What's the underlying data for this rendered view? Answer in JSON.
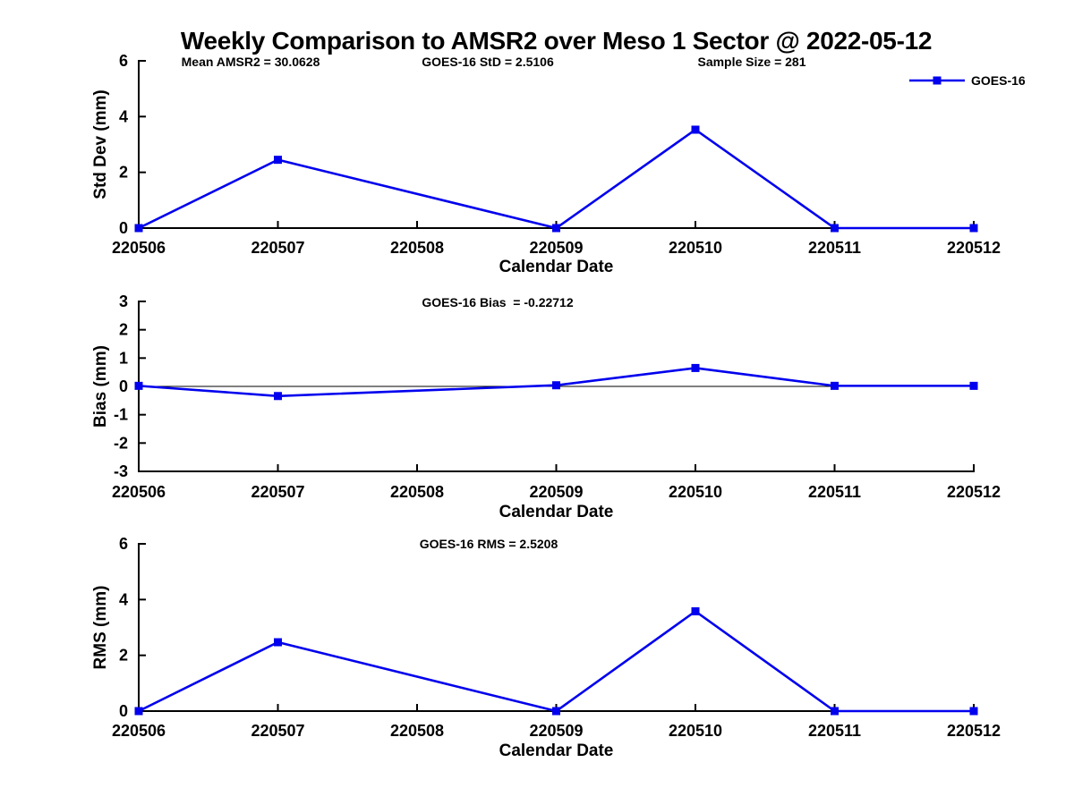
{
  "figure": {
    "title": "Weekly Comparison to AMSR2 over Meso 1 Sector @ 2022-05-12",
    "background_color": "#ffffff",
    "accent_color": "#0000ee",
    "axis_color": "#000000"
  },
  "chart_data": [
    {
      "type": "line",
      "ylabel": "Std Dev (mm)",
      "xlabel": "Calendar Date",
      "ylim": [
        0,
        6
      ],
      "yticks": [
        0,
        2,
        4,
        6
      ],
      "categories": [
        "220506",
        "220507",
        "220508",
        "220509",
        "220510",
        "220511",
        "220512"
      ],
      "annotations": [
        "Mean AMSR2 = 30.0628",
        "GOES-16 StD = 2.5106",
        "Sample Size = 281"
      ],
      "grid": false,
      "zero_line": false,
      "legend": {
        "entries": [
          "GOES-16"
        ],
        "position": "top-right"
      },
      "series": [
        {
          "name": "GOES-16",
          "color": "#0000ee",
          "marker": "square",
          "values": [
            0,
            2.45,
            null,
            0,
            3.53,
            0,
            0
          ]
        }
      ]
    },
    {
      "type": "line",
      "ylabel": "Bias (mm)",
      "xlabel": "Calendar Date",
      "ylim": [
        -3,
        3
      ],
      "yticks": [
        -3,
        -2,
        -1,
        0,
        1,
        2,
        3
      ],
      "categories": [
        "220506",
        "220507",
        "220508",
        "220509",
        "220510",
        "220511",
        "220512"
      ],
      "annotations": [
        "GOES-16 Bias  = -0.22712"
      ],
      "grid": false,
      "zero_line": true,
      "legend": null,
      "series": [
        {
          "name": "GOES-16",
          "color": "#0000ee",
          "marker": "square",
          "values": [
            0.02,
            -0.34,
            null,
            0.04,
            0.65,
            0.02,
            0.02
          ]
        }
      ]
    },
    {
      "type": "line",
      "ylabel": "RMS (mm)",
      "xlabel": "Calendar Date",
      "ylim": [
        0,
        6
      ],
      "yticks": [
        0,
        2,
        4,
        6
      ],
      "categories": [
        "220506",
        "220507",
        "220508",
        "220509",
        "220510",
        "220511",
        "220512"
      ],
      "annotations": [
        "GOES-16 RMS = 2.5208"
      ],
      "grid": false,
      "zero_line": false,
      "legend": null,
      "series": [
        {
          "name": "GOES-16",
          "color": "#0000ee",
          "marker": "square",
          "values": [
            0,
            2.47,
            null,
            0,
            3.58,
            0,
            0
          ]
        }
      ]
    }
  ]
}
